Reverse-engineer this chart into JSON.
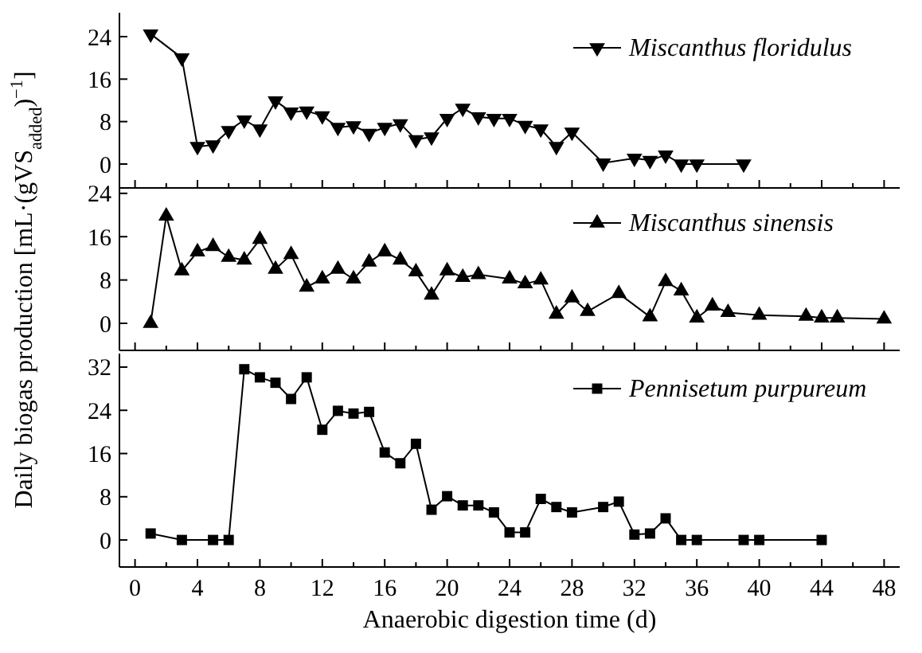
{
  "chart_data": [
    {
      "type": "line",
      "marker": "triangle-down",
      "legend": "top right",
      "tick_labels": "y",
      "xlim": [
        -1,
        49
      ],
      "ylim": [
        -4.5,
        28.5
      ],
      "yticks": [
        0,
        8,
        16,
        24
      ],
      "xticks": [
        0,
        {
          "value": 2,
          "label": null
        },
        4,
        {
          "value": 6,
          "label": null
        },
        8,
        {
          "value": 10,
          "label": null
        },
        12,
        {
          "value": 14,
          "label": null
        },
        16,
        {
          "value": 18,
          "label": null
        },
        20,
        {
          "value": 22,
          "label": null
        },
        24,
        {
          "value": 26,
          "label": null
        },
        28,
        {
          "value": 30,
          "label": null
        },
        32,
        {
          "value": 34,
          "label": null
        },
        36,
        {
          "value": 38,
          "label": null
        },
        40,
        {
          "value": 42,
          "label": null
        },
        44,
        {
          "value": 46,
          "label": null
        },
        48
      ],
      "series": [
        {
          "name": "Miscanthus floridulus",
          "color": "#000000",
          "x": [
            1,
            3,
            4,
            5,
            6,
            7,
            8,
            9,
            10,
            11,
            12,
            13,
            14,
            15,
            16,
            17,
            18,
            19,
            20,
            21,
            22,
            23,
            24,
            25,
            26,
            27,
            28,
            30,
            32,
            33,
            34,
            35,
            36,
            39
          ],
          "values": [
            24.5,
            20,
            3.3,
            3.6,
            6.3,
            8.3,
            6.6,
            11.9,
            9.8,
            10,
            9.1,
            6.9,
            7.2,
            5.8,
            6.9,
            7.6,
            4.6,
            5.1,
            8.6,
            10.5,
            8.9,
            8.6,
            8.6,
            7.3,
            6.6,
            3.3,
            6,
            0.2,
            1.1,
            0.7,
            1.7,
            0,
            0,
            0
          ]
        }
      ]
    },
    {
      "type": "line",
      "marker": "triangle",
      "legend": "top right",
      "tick_labels": "y",
      "xlim": [
        -1,
        49
      ],
      "ylim": [
        -5,
        25
      ],
      "yticks": [
        0,
        8,
        16,
        24
      ],
      "ylabel": "Daily biogas production [mL·(gVS$_{added}$)$^{−1}$]",
      "xticks": [
        0,
        {
          "value": 2,
          "label": null
        },
        4,
        {
          "value": 6,
          "label": null
        },
        8,
        {
          "value": 10,
          "label": null
        },
        12,
        {
          "value": 14,
          "label": null
        },
        16,
        {
          "value": 18,
          "label": null
        },
        20,
        {
          "value": 22,
          "label": null
        },
        24,
        {
          "value": 26,
          "label": null
        },
        28,
        {
          "value": 30,
          "label": null
        },
        32,
        {
          "value": 34,
          "label": null
        },
        36,
        {
          "value": 38,
          "label": null
        },
        40,
        {
          "value": 42,
          "label": null
        },
        44,
        {
          "value": 46,
          "label": null
        },
        48
      ],
      "series": [
        {
          "name": "Miscanthus sinensis",
          "color": "#000000",
          "x": [
            1,
            2,
            3,
            4,
            5,
            6,
            7,
            8,
            9,
            10,
            11,
            12,
            13,
            14,
            15,
            16,
            17,
            18,
            19,
            20,
            21,
            22,
            24,
            25,
            26,
            27,
            28,
            29,
            31,
            33,
            34,
            35,
            36,
            37,
            38,
            40,
            43,
            44,
            45,
            48
          ],
          "values": [
            0,
            19.8,
            9.7,
            13.2,
            14.2,
            12.2,
            11.7,
            15.5,
            10,
            12.7,
            6.7,
            8.2,
            10,
            8.2,
            11.3,
            13.2,
            11.7,
            9.5,
            5.2,
            9.7,
            8.5,
            9,
            8.2,
            7.3,
            8,
            1.7,
            4.7,
            2.2,
            5.5,
            1.2,
            7.7,
            6,
            1,
            3.2,
            2,
            1.5,
            1.3,
            1,
            1,
            0.8
          ]
        }
      ]
    },
    {
      "type": "line",
      "marker": "square",
      "legend": "top right",
      "xlim": [
        -1,
        49
      ],
      "ylim": [
        -5,
        34.5
      ],
      "yticks": [
        0,
        8,
        16,
        24,
        32
      ],
      "xlabel": "Anaerobic digestion time (d)",
      "xticks": [
        0,
        {
          "value": 2,
          "label": null
        },
        4,
        {
          "value": 6,
          "label": null
        },
        8,
        {
          "value": 10,
          "label": null
        },
        12,
        {
          "value": 14,
          "label": null
        },
        16,
        {
          "value": 18,
          "label": null
        },
        20,
        {
          "value": 22,
          "label": null
        },
        24,
        {
          "value": 26,
          "label": null
        },
        28,
        {
          "value": 30,
          "label": null
        },
        32,
        {
          "value": 34,
          "label": null
        },
        36,
        {
          "value": 38,
          "label": null
        },
        40,
        {
          "value": 42,
          "label": null
        },
        44,
        {
          "value": 46,
          "label": null
        },
        48
      ],
      "series": [
        {
          "name": "Pennisetum purpureum",
          "color": "#000000",
          "x": [
            1,
            3,
            5,
            6,
            7,
            8,
            9,
            10,
            11,
            12,
            13,
            14,
            15,
            16,
            17,
            18,
            19,
            20,
            21,
            22,
            23,
            24,
            25,
            26,
            27,
            28,
            30,
            31,
            32,
            33,
            34,
            35,
            36,
            39,
            40,
            44
          ],
          "values": [
            1.2,
            0,
            0,
            0,
            31.6,
            30.1,
            29.1,
            26.1,
            30.1,
            20.4,
            23.9,
            23.4,
            23.7,
            16.2,
            14.2,
            17.8,
            5.6,
            8.1,
            6.4,
            6.4,
            5.1,
            1.4,
            1.4,
            7.6,
            6.1,
            5.1,
            6.1,
            7.1,
            1,
            1.2,
            4,
            0,
            0,
            0,
            0,
            0
          ]
        }
      ]
    }
  ]
}
